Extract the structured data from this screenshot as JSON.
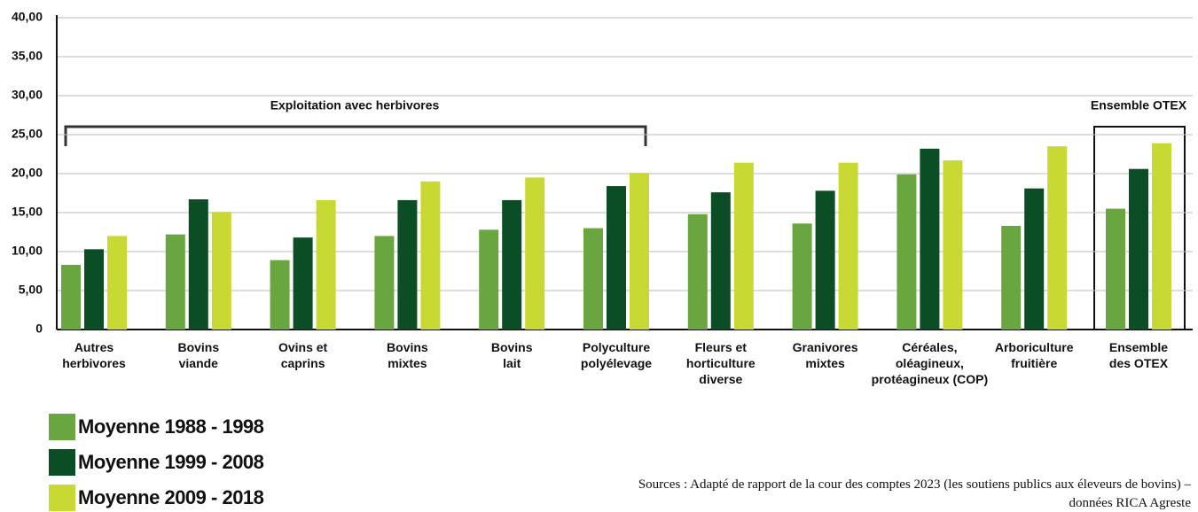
{
  "chart_data": {
    "type": "bar",
    "categories": [
      "Autres\nherbivores",
      "Bovins\nviande",
      "Ovins et\ncaprins",
      "Bovins\nmixtes",
      "Bovins\nlait",
      "Polyculture\npolyélevage",
      "Fleurs et\nhorticulture\ndiverse",
      "Granivores\nmixtes",
      "Céréales,\noléagineux,\nprotéagineux (COP)",
      "Arboriculture\nfruitière",
      "Ensemble\ndes OTEX"
    ],
    "series": [
      {
        "name": "Moyenne 1988 - 1998",
        "color": "#6aa640",
        "values": [
          8.3,
          12.2,
          8.9,
          12.0,
          12.8,
          13.0,
          14.8,
          13.6,
          19.9,
          13.3,
          15.5
        ]
      },
      {
        "name": "Moyenne 1999 - 2008",
        "color": "#0b4d24",
        "values": [
          10.3,
          16.7,
          11.8,
          16.6,
          16.6,
          18.4,
          17.6,
          17.8,
          23.2,
          18.1,
          20.6
        ]
      },
      {
        "name": "Moyenne 2009 - 2018",
        "color": "#c8d934",
        "values": [
          12.0,
          15.1,
          16.6,
          19.0,
          19.5,
          20.1,
          21.4,
          21.4,
          21.7,
          23.5,
          23.9
        ]
      }
    ],
    "ylim": [
      0,
      40
    ],
    "yticks": [
      0,
      {
        "value": 5,
        "label": "5,00"
      },
      {
        "value": 10,
        "label": "10,00"
      },
      {
        "value": 15,
        "label": "15,00"
      },
      {
        "value": 20,
        "label": "20,00"
      },
      {
        "value": 25,
        "label": "25,00"
      },
      {
        "value": 30,
        "label": "30,00"
      },
      {
        "value": 35,
        "label": "35,00"
      },
      {
        "value": 40,
        "label": "40,00"
      }
    ],
    "grid": true,
    "annotations": [
      "Exploitation avec herbivores",
      "Ensemble OTEX"
    ],
    "source": "Sources : Adapté de rapport de la cour des comptes 2023 (les soutiens publics aux éleveurs de bovins) –\ndonnées RICA Agreste"
  }
}
